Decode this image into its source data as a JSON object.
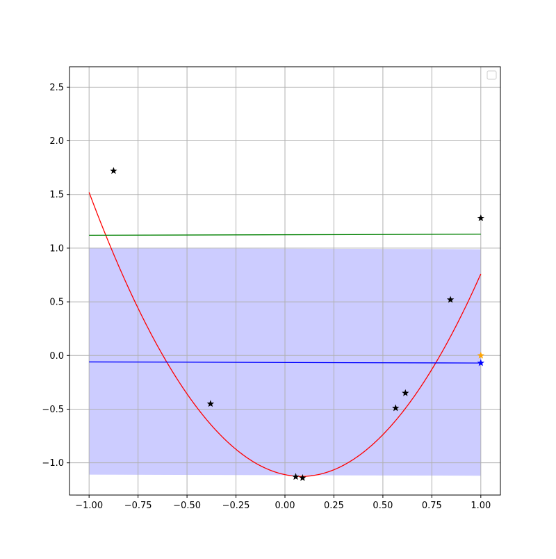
{
  "chart_data": {
    "type": "line",
    "title": "",
    "xlabel": "",
    "ylabel": "",
    "xlim": [
      -1.1,
      1.1
    ],
    "ylim": [
      -1.3,
      2.69
    ],
    "grid": true,
    "legend": {
      "location": "upper right",
      "entries": []
    },
    "x_ticks": [
      -1.0,
      -0.75,
      -0.5,
      -0.25,
      0.0,
      0.25,
      0.5,
      0.75,
      1.0
    ],
    "x_tick_labels": [
      "−1.00",
      "−0.75",
      "−0.50",
      "−0.25",
      "0.00",
      "0.25",
      "0.50",
      "0.75",
      "1.00"
    ],
    "y_ticks": [
      -1.0,
      -0.5,
      0.0,
      0.5,
      1.0,
      1.5,
      2.0,
      2.5
    ],
    "y_tick_labels": [
      "−1.0",
      "−0.5",
      "0.0",
      "0.5",
      "1.0",
      "1.5",
      "2.0",
      "2.5"
    ],
    "band": {
      "color": "#ccccff",
      "x": [
        -1.0,
        1.0
      ],
      "lower": [
        -1.11,
        -1.12
      ],
      "upper": [
        1.0,
        0.99
      ]
    },
    "series": [
      {
        "kind": "curve",
        "color": "#ff0000",
        "function": "quadratic",
        "x_range": [
          -1.0,
          1.0
        ],
        "coefficients": {
          "a": 2.25,
          "b": -0.38,
          "c": -1.11
        }
      },
      {
        "kind": "line",
        "color": "#008000",
        "x": [
          -1.0,
          1.0
        ],
        "y": [
          1.12,
          1.13
        ]
      },
      {
        "kind": "line",
        "color": "#0000ff",
        "x": [
          -1.0,
          1.0
        ],
        "y": [
          -0.06,
          -0.07
        ]
      },
      {
        "kind": "markers",
        "marker": "star",
        "color": "#000000",
        "points": [
          {
            "x": -0.875,
            "y": 1.72
          },
          {
            "x": -0.38,
            "y": -0.45
          },
          {
            "x": 0.055,
            "y": -1.13
          },
          {
            "x": 0.09,
            "y": -1.14
          },
          {
            "x": 0.565,
            "y": -0.49
          },
          {
            "x": 0.615,
            "y": -0.35
          },
          {
            "x": 0.845,
            "y": 0.52
          },
          {
            "x": 1.0,
            "y": 1.28
          }
        ]
      },
      {
        "kind": "markers",
        "marker": "star",
        "color": "#ffa500",
        "points": [
          {
            "x": 1.0,
            "y": 0.0
          }
        ]
      },
      {
        "kind": "markers",
        "marker": "star",
        "color": "#0000ff",
        "points": [
          {
            "x": 1.0,
            "y": -0.07
          }
        ]
      }
    ]
  }
}
